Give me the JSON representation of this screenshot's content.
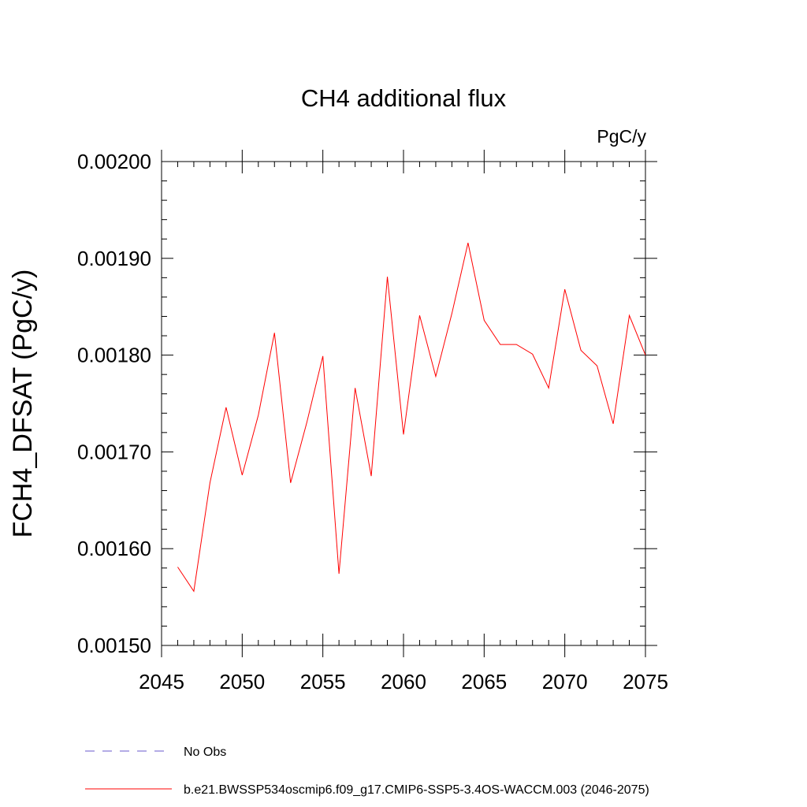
{
  "chart_data": {
    "type": "line",
    "title": "CH4 additional flux",
    "units": "PgC/y",
    "ylabel": "FCH4_DFSAT  (PgC/y)",
    "xlim": [
      2045,
      2075
    ],
    "ylim": [
      0.0015,
      0.002
    ],
    "xticks": [
      "2045",
      "2050",
      "2055",
      "2060",
      "2065",
      "2070",
      "2075"
    ],
    "yticks": [
      "0.00150",
      "0.00160",
      "0.00170",
      "0.00180",
      "0.00190",
      "0.00200"
    ],
    "series": [
      {
        "name": "b.e21.BWSSP534oscmip6.f09_g17.CMIP6-SSP5-3.4OS-WACCM.003 (2046-2075)",
        "color": "#ff0000",
        "x": [
          2046,
          2047,
          2048,
          2049,
          2050,
          2051,
          2052,
          2053,
          2054,
          2055,
          2056,
          2057,
          2058,
          2059,
          2060,
          2061,
          2062,
          2063,
          2064,
          2065,
          2066,
          2067,
          2068,
          2069,
          2070,
          2071,
          2072,
          2073,
          2074,
          2075
        ],
        "values": [
          0.001581,
          0.001556,
          0.001668,
          0.001746,
          0.001676,
          0.001738,
          0.001823,
          0.001668,
          0.00173,
          0.001799,
          0.001574,
          0.001766,
          0.001675,
          0.001881,
          0.001718,
          0.001841,
          0.001778,
          0.001843,
          0.001916,
          0.001836,
          0.001811,
          0.001811,
          0.001801,
          0.001766,
          0.001868,
          0.001805,
          0.001789,
          0.001729,
          0.001841,
          0.0018
        ]
      }
    ],
    "legend": [
      {
        "label": "No Obs",
        "style": "dashed",
        "color": "#6a5acd"
      },
      {
        "label": "b.e21.BWSSP534oscmip6.f09_g17.CMIP6-SSP5-3.4OS-WACCM.003 (2046-2075)",
        "style": "solid",
        "color": "#ff0000"
      }
    ]
  }
}
